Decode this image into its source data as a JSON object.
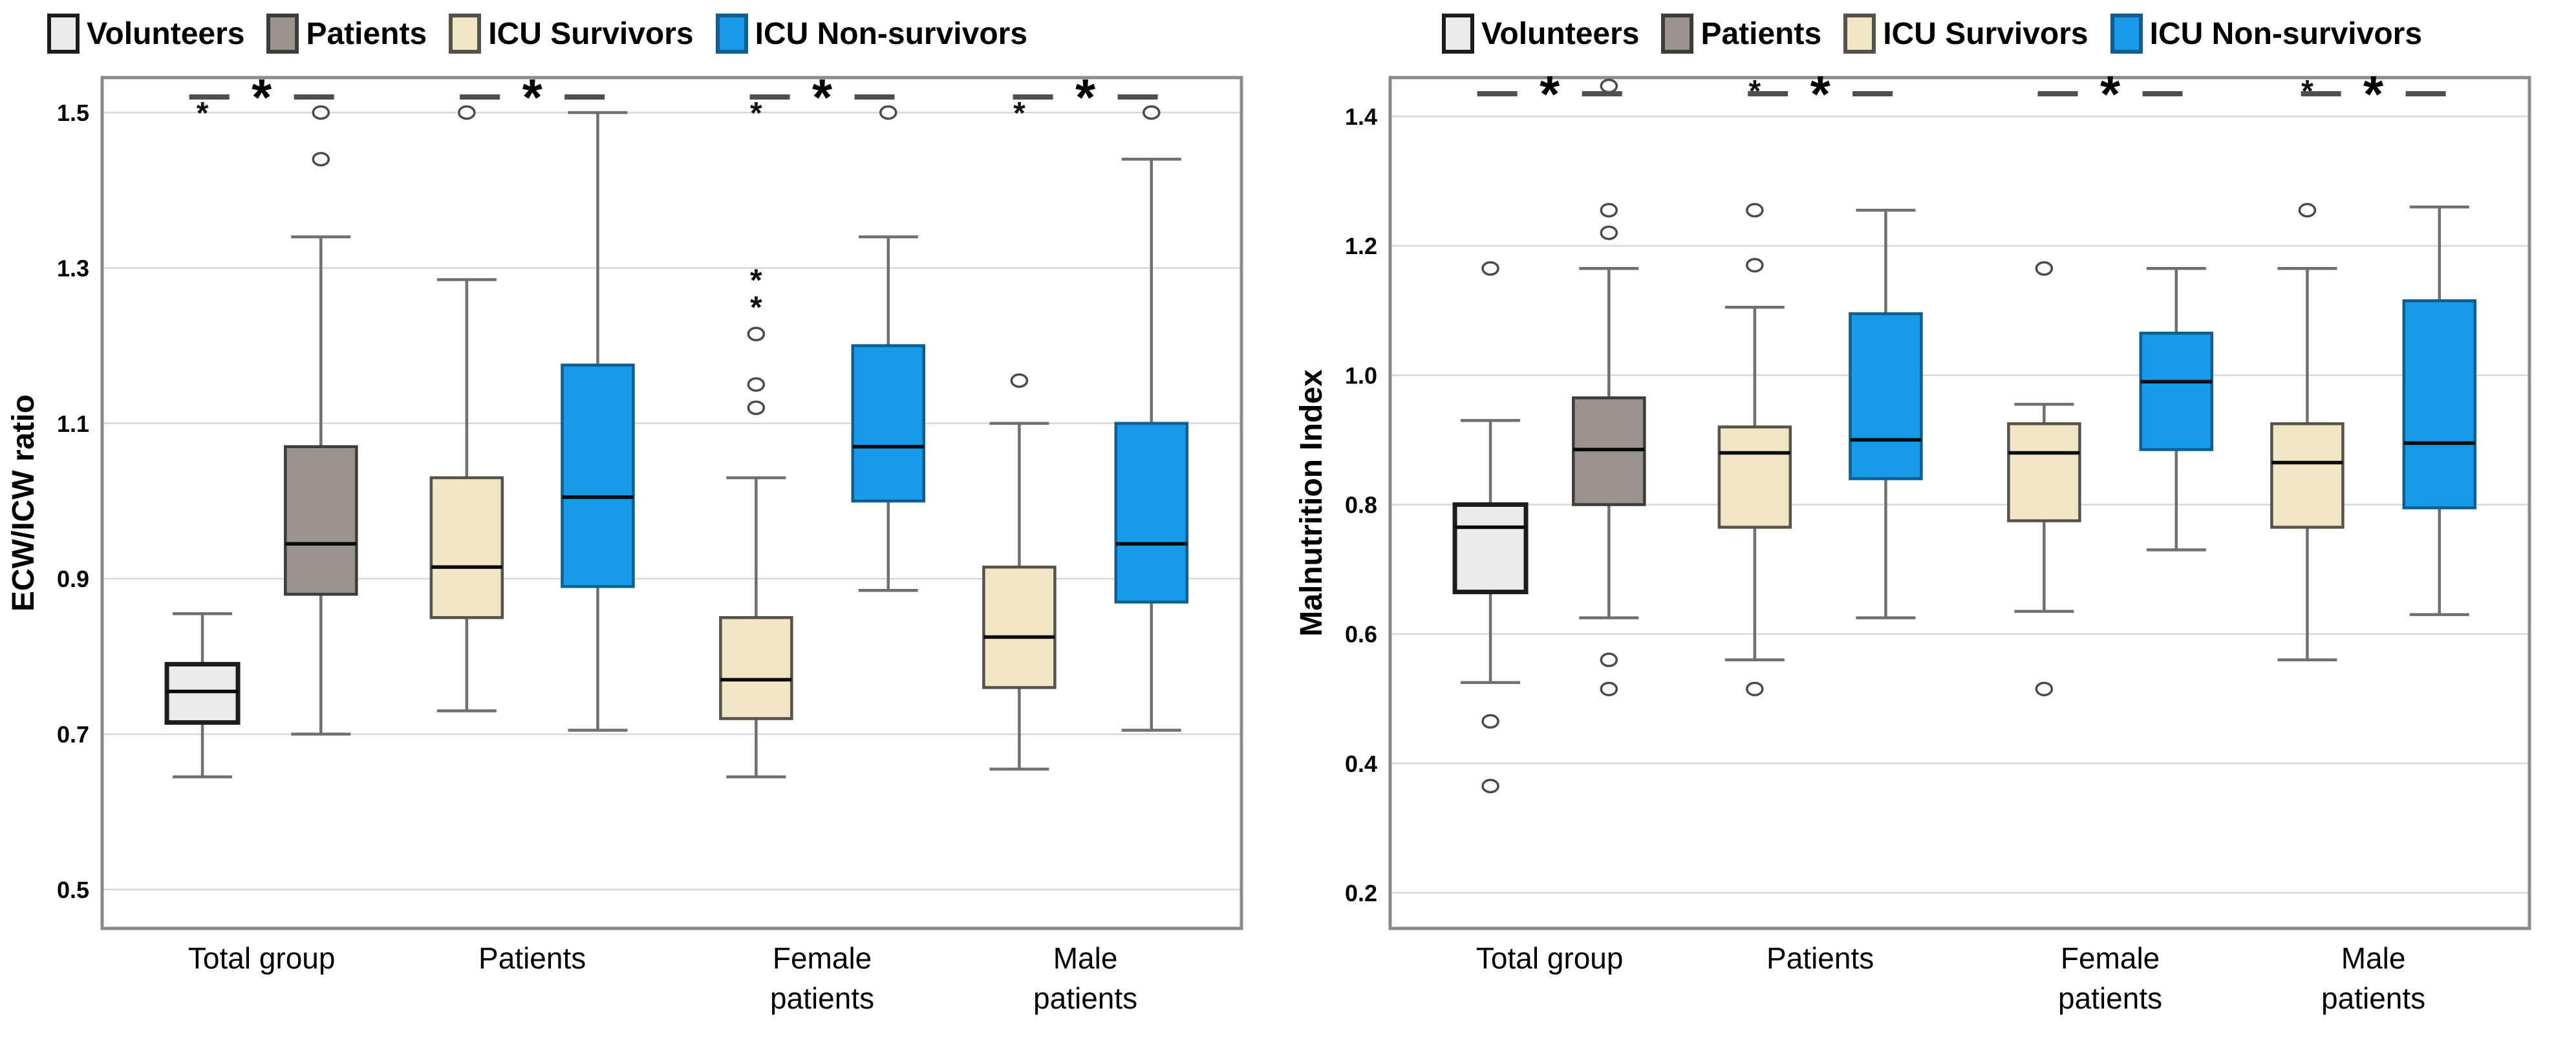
{
  "legend": {
    "items": [
      {
        "key": "volunteers",
        "label": "Volunteers",
        "fill": "#ECEBE9",
        "border": "#1C1C1C",
        "border_width": 7
      },
      {
        "key": "patients",
        "label": "Patients",
        "fill": "#9A948C",
        "border": "#3F3B37",
        "border_width": 4.5
      },
      {
        "key": "icu-survivors",
        "label": "ICU Survivors",
        "fill": "#F0E6C6",
        "border": "#56524A",
        "border_width": 4.5
      },
      {
        "key": "icu-non-survivors",
        "label": "ICU Non-survivors",
        "fill": "#179BE8",
        "border": "#0F5D91",
        "border_width": 4.5
      }
    ]
  },
  "chart_data": [
    {
      "type": "boxplot",
      "ylabel": "ECW/ICW ratio",
      "ylim": [
        0.45,
        1.545
      ],
      "grid": true,
      "legend_position": "top",
      "yticks": [
        {
          "v": 0.5,
          "label": "0.5"
        },
        {
          "v": 0.7,
          "label": "0.7"
        },
        {
          "v": 0.9,
          "label": "0.9"
        },
        {
          "v": 1.1,
          "label": "1.1"
        },
        {
          "v": 1.3,
          "label": "1.3"
        },
        {
          "v": 1.5,
          "label": "1.5"
        }
      ],
      "categories": [
        [
          "Total group"
        ],
        [
          "Patients"
        ],
        [
          "Female",
          "patients"
        ],
        [
          "Male",
          "patients"
        ]
      ],
      "sig": {
        "symbol": "*",
        "y": 1.52,
        "groups": [
          0,
          1,
          2,
          3
        ]
      },
      "boxes": [
        {
          "series": "volunteers",
          "group": 0,
          "whislo": 0.645,
          "q1": 0.715,
          "med": 0.755,
          "q3": 0.79,
          "whishi": 0.855,
          "fliers": [
            {
              "v": 1.5,
              "shape": "star"
            }
          ]
        },
        {
          "series": "patients",
          "group": 0,
          "whislo": 0.7,
          "q1": 0.88,
          "med": 0.945,
          "q3": 1.07,
          "whishi": 1.34,
          "fliers": [
            {
              "v": 1.44,
              "shape": "circle"
            },
            {
              "v": 1.5,
              "shape": "circle"
            }
          ]
        },
        {
          "series": "icu-survivors",
          "group": 1,
          "whislo": 0.73,
          "q1": 0.85,
          "med": 0.915,
          "q3": 1.03,
          "whishi": 1.285,
          "fliers": [
            {
              "v": 1.5,
              "shape": "circle"
            }
          ]
        },
        {
          "series": "icu-non-survivors",
          "group": 1,
          "whislo": 0.705,
          "q1": 0.89,
          "med": 1.005,
          "q3": 1.175,
          "whishi": 1.5,
          "fliers": []
        },
        {
          "series": "icu-survivors",
          "group": 2,
          "whislo": 0.645,
          "q1": 0.72,
          "med": 0.77,
          "q3": 0.85,
          "whishi": 1.03,
          "fliers": [
            {
              "v": 1.12,
              "shape": "circle"
            },
            {
              "v": 1.15,
              "shape": "circle"
            },
            {
              "v": 1.215,
              "shape": "circle"
            },
            {
              "v": 1.25,
              "shape": "star"
            },
            {
              "v": 1.285,
              "shape": "star"
            },
            {
              "v": 1.5,
              "shape": "star"
            }
          ]
        },
        {
          "series": "icu-non-survivors",
          "group": 2,
          "whislo": 0.885,
          "q1": 1.0,
          "med": 1.07,
          "q3": 1.2,
          "whishi": 1.34,
          "fliers": [
            {
              "v": 1.5,
              "shape": "circle"
            }
          ]
        },
        {
          "series": "icu-survivors",
          "group": 3,
          "whislo": 0.655,
          "q1": 0.76,
          "med": 0.825,
          "q3": 0.915,
          "whishi": 1.1,
          "fliers": [
            {
              "v": 1.155,
              "shape": "circle"
            },
            {
              "v": 1.5,
              "shape": "star"
            }
          ]
        },
        {
          "series": "icu-non-survivors",
          "group": 3,
          "whislo": 0.705,
          "q1": 0.87,
          "med": 0.945,
          "q3": 1.1,
          "whishi": 1.44,
          "fliers": [
            {
              "v": 1.5,
              "shape": "circle"
            }
          ]
        }
      ]
    },
    {
      "type": "boxplot",
      "ylabel": "Malnutrition Index",
      "ylim": [
        0.145,
        1.46
      ],
      "grid": true,
      "legend_position": "top",
      "yticks": [
        {
          "v": 0.2,
          "label": "0.2"
        },
        {
          "v": 0.4,
          "label": "0.4"
        },
        {
          "v": 0.6,
          "label": "0.6"
        },
        {
          "v": 0.8,
          "label": "0.8"
        },
        {
          "v": 1.0,
          "label": "1.0"
        },
        {
          "v": 1.2,
          "label": "1.2"
        },
        {
          "v": 1.4,
          "label": "1.4"
        }
      ],
      "categories": [
        [
          "Total group"
        ],
        [
          "Patients"
        ],
        [
          "Female",
          "patients"
        ],
        [
          "Male",
          "patients"
        ]
      ],
      "sig": {
        "symbol": "*",
        "y": 1.435,
        "groups": [
          0,
          1,
          2,
          3
        ]
      },
      "boxes": [
        {
          "series": "volunteers",
          "group": 0,
          "whislo": 0.525,
          "q1": 0.665,
          "med": 0.765,
          "q3": 0.8,
          "whishi": 0.93,
          "fliers": [
            {
              "v": 1.165,
              "shape": "circle"
            },
            {
              "v": 0.465,
              "shape": "circle"
            },
            {
              "v": 0.365,
              "shape": "circle"
            }
          ]
        },
        {
          "series": "patients",
          "group": 0,
          "whislo": 0.625,
          "q1": 0.8,
          "med": 0.885,
          "q3": 0.965,
          "whishi": 1.165,
          "fliers": [
            {
              "v": 1.447,
              "shape": "circle"
            },
            {
              "v": 1.255,
              "shape": "circle"
            },
            {
              "v": 1.22,
              "shape": "circle"
            },
            {
              "v": 0.56,
              "shape": "circle"
            },
            {
              "v": 0.515,
              "shape": "circle"
            }
          ]
        },
        {
          "series": "icu-survivors",
          "group": 1,
          "whislo": 0.56,
          "q1": 0.765,
          "med": 0.88,
          "q3": 0.92,
          "whishi": 1.105,
          "fliers": [
            {
              "v": 1.44,
              "shape": "star"
            },
            {
              "v": 1.255,
              "shape": "circle"
            },
            {
              "v": 1.17,
              "shape": "circle"
            },
            {
              "v": 0.515,
              "shape": "circle"
            }
          ]
        },
        {
          "series": "icu-non-survivors",
          "group": 1,
          "whislo": 0.625,
          "q1": 0.84,
          "med": 0.9,
          "q3": 1.095,
          "whishi": 1.255,
          "fliers": []
        },
        {
          "series": "icu-survivors",
          "group": 2,
          "whislo": 0.635,
          "q1": 0.775,
          "med": 0.88,
          "q3": 0.925,
          "whishi": 0.955,
          "fliers": [
            {
              "v": 1.165,
              "shape": "circle"
            },
            {
              "v": 0.515,
              "shape": "circle"
            }
          ]
        },
        {
          "series": "icu-non-survivors",
          "group": 2,
          "whislo": 0.73,
          "q1": 0.885,
          "med": 0.99,
          "q3": 1.065,
          "whishi": 1.165,
          "fliers": []
        },
        {
          "series": "icu-survivors",
          "group": 3,
          "whislo": 0.56,
          "q1": 0.765,
          "med": 0.865,
          "q3": 0.925,
          "whishi": 1.165,
          "fliers": [
            {
              "v": 1.44,
              "shape": "star"
            },
            {
              "v": 1.255,
              "shape": "circle"
            }
          ]
        },
        {
          "series": "icu-non-survivors",
          "group": 3,
          "whislo": 0.63,
          "q1": 0.795,
          "med": 0.895,
          "q3": 1.115,
          "whishi": 1.26,
          "fliers": []
        }
      ]
    }
  ]
}
